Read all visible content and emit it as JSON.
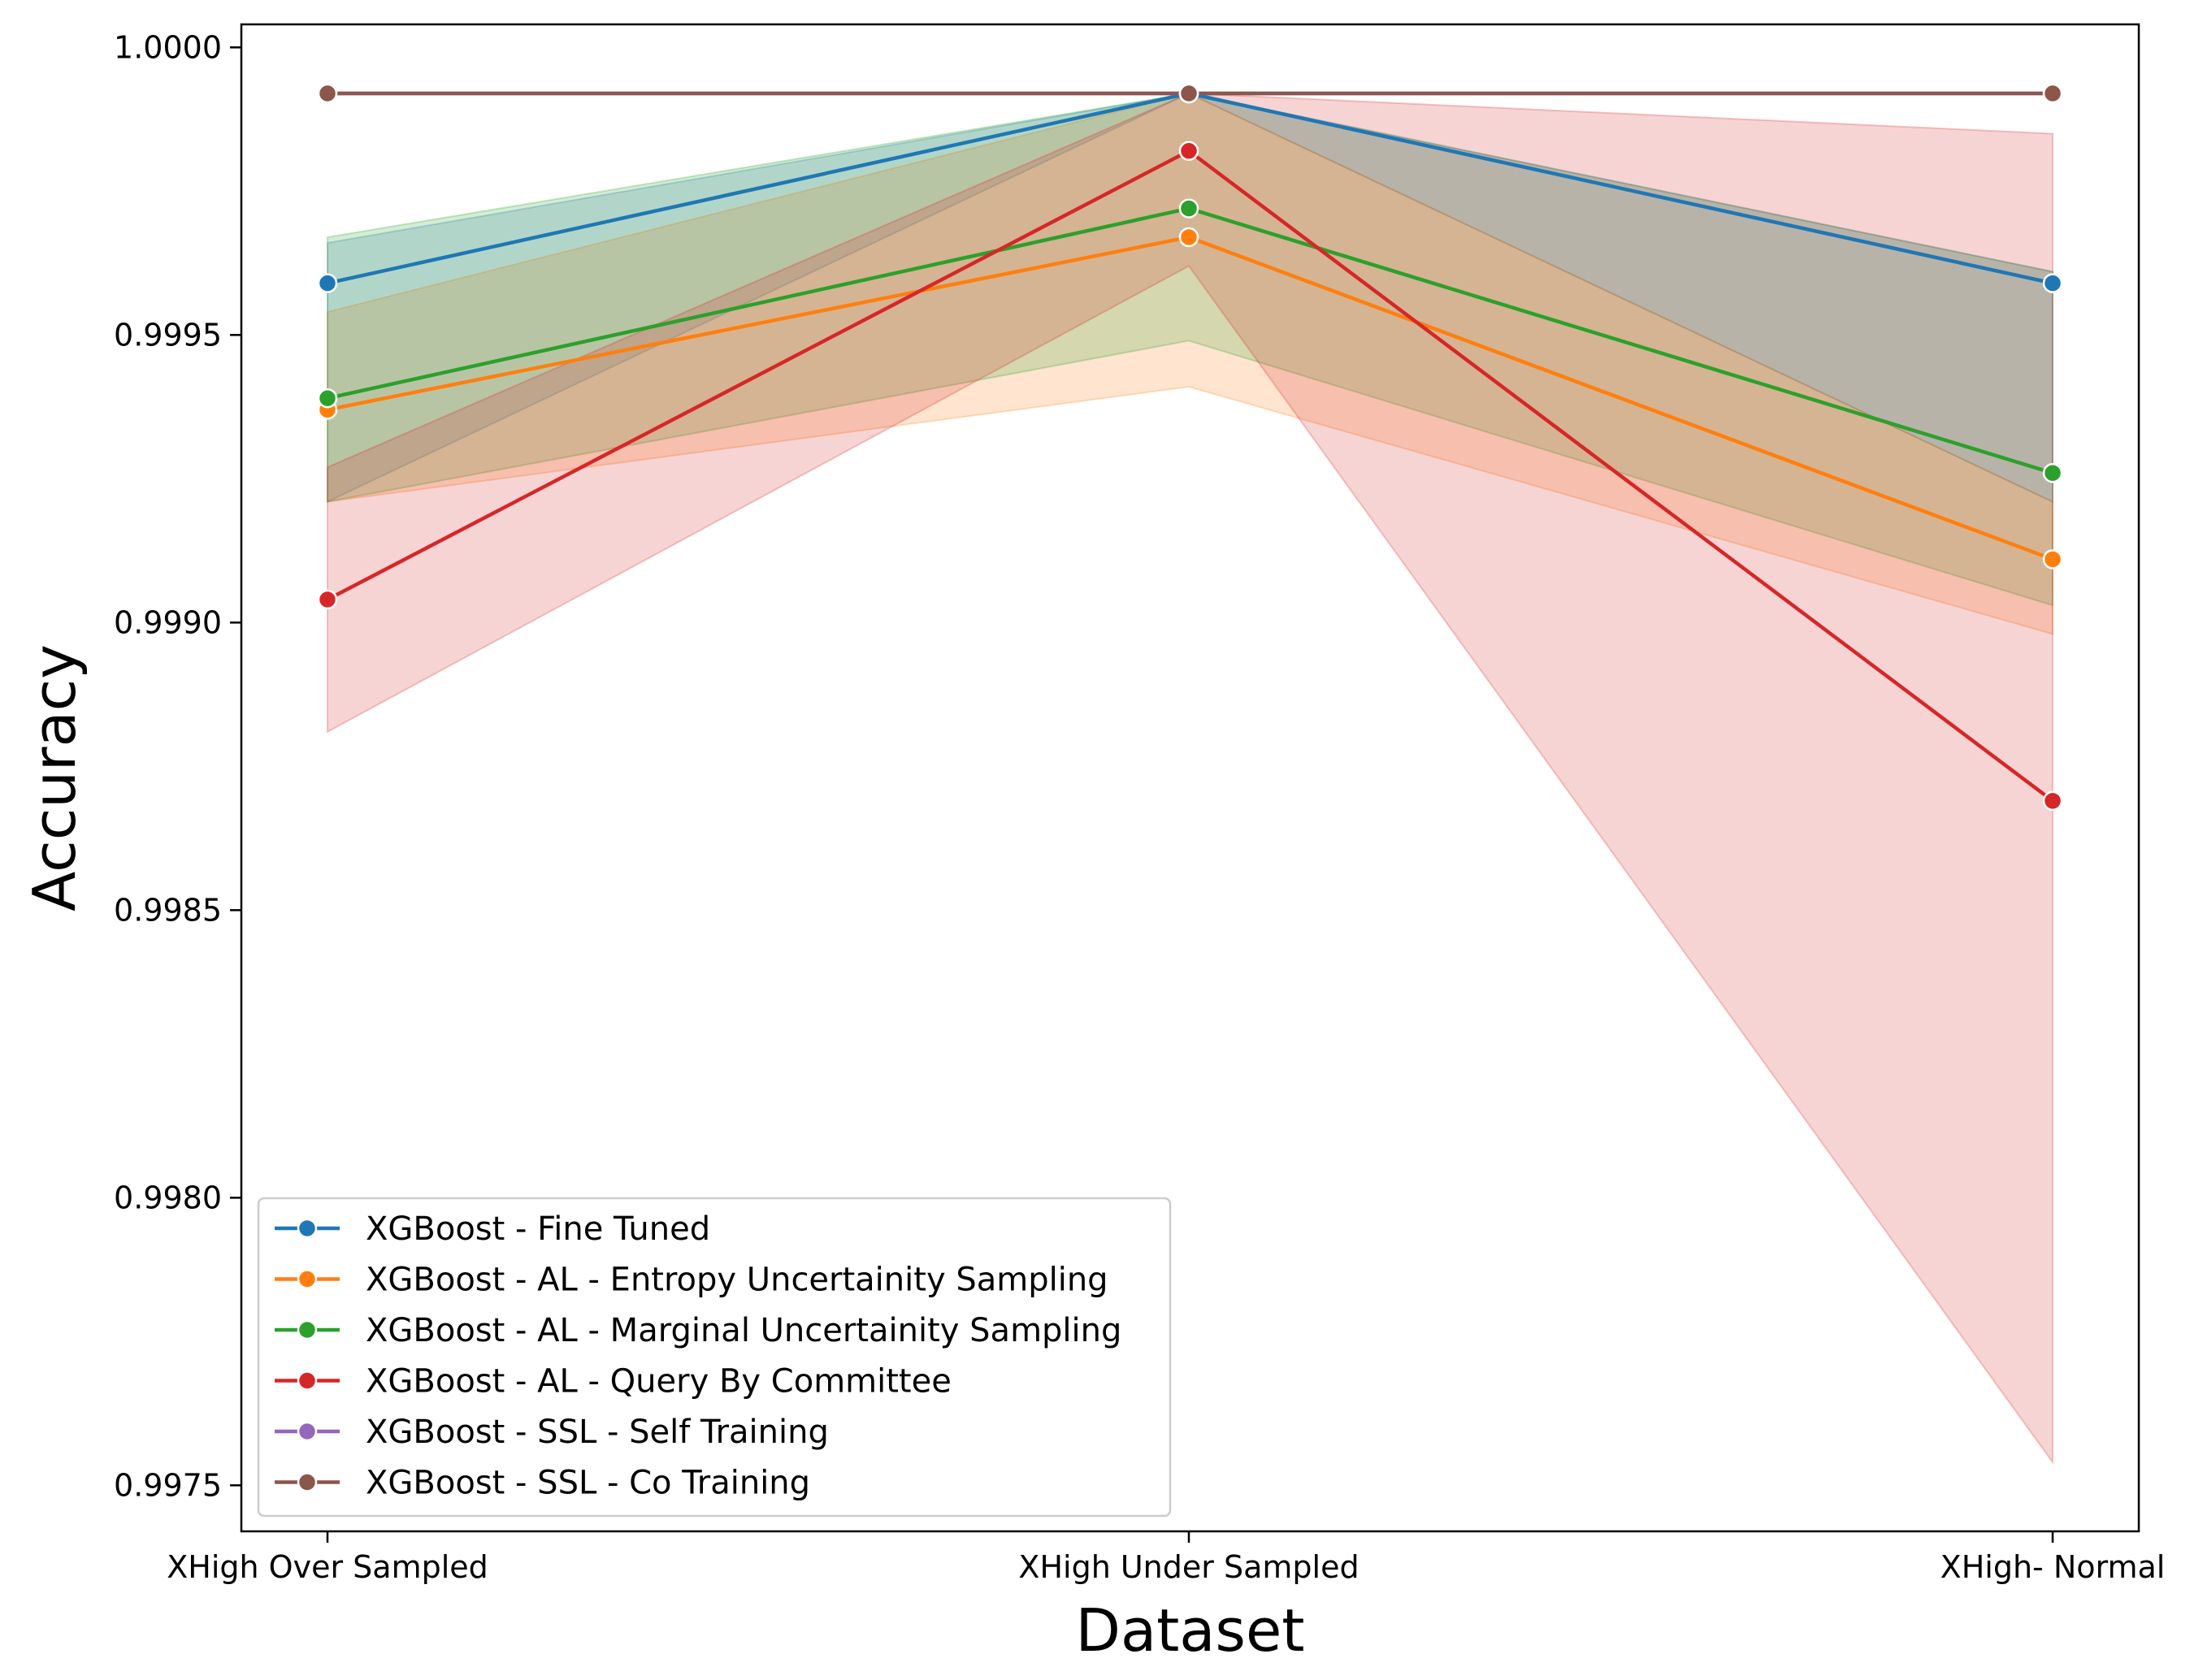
{
  "chart_data": {
    "type": "line",
    "xlabel": "Dataset",
    "ylabel": "Accuracy",
    "categories": [
      "XHigh Over Sampled",
      "XHigh Under Sampled",
      "XHigh- Normal"
    ],
    "ylim": [
      0.99742,
      1.00004
    ],
    "yticks": [
      0.9975,
      0.998,
      0.9985,
      0.999,
      0.9995,
      1.0
    ],
    "ytick_labels": [
      "0.9975",
      "0.9980",
      "0.9985",
      "0.9990",
      "0.9995",
      "1.0000"
    ],
    "legend_position": "lower left",
    "grid": false,
    "series": [
      {
        "name": "XGBoost - Fine Tuned",
        "color": "#1f77b4",
        "values": [
          0.99959,
          0.99992,
          0.99959
        ],
        "ci_low": [
          0.99921,
          0.99992,
          0.99921
        ],
        "ci_high": [
          0.99966,
          0.99992,
          0.99961
        ]
      },
      {
        "name": "XGBoost - AL - Entropy Uncertainity Sampling",
        "color": "#ff7f0e",
        "values": [
          0.99937,
          0.99967,
          0.99911
        ],
        "ci_low": [
          0.99921,
          0.99941,
          0.99898
        ],
        "ci_high": [
          0.99954,
          0.99992,
          0.99921
        ]
      },
      {
        "name": "XGBoost - AL - Marginal Uncertainity Sampling",
        "color": "#2ca02c",
        "values": [
          0.99939,
          0.99972,
          0.99926
        ],
        "ci_low": [
          0.99921,
          0.99949,
          0.99903
        ],
        "ci_high": [
          0.99967,
          0.99992,
          0.99961
        ]
      },
      {
        "name": "XGBoost - AL - Query By Committee",
        "color": "#d62728",
        "values": [
          0.99904,
          0.99982,
          0.99869
        ],
        "ci_low": [
          0.99881,
          0.99962,
          0.99754
        ],
        "ci_high": [
          0.99927,
          0.99992,
          0.99985
        ]
      },
      {
        "name": "XGBoost - SSL - Self Training",
        "color": "#9467bd",
        "values": [
          0.99992,
          0.99992,
          0.99992
        ],
        "ci_low": [
          0.99992,
          0.99992,
          0.99992
        ],
        "ci_high": [
          0.99992,
          0.99992,
          0.99992
        ]
      },
      {
        "name": "XGBoost - SSL - Co Training",
        "color": "#8c564b",
        "values": [
          0.99992,
          0.99992,
          0.99992
        ],
        "ci_low": [
          0.99992,
          0.99992,
          0.99992
        ],
        "ci_high": [
          0.99992,
          0.99992,
          0.99992
        ]
      }
    ]
  }
}
